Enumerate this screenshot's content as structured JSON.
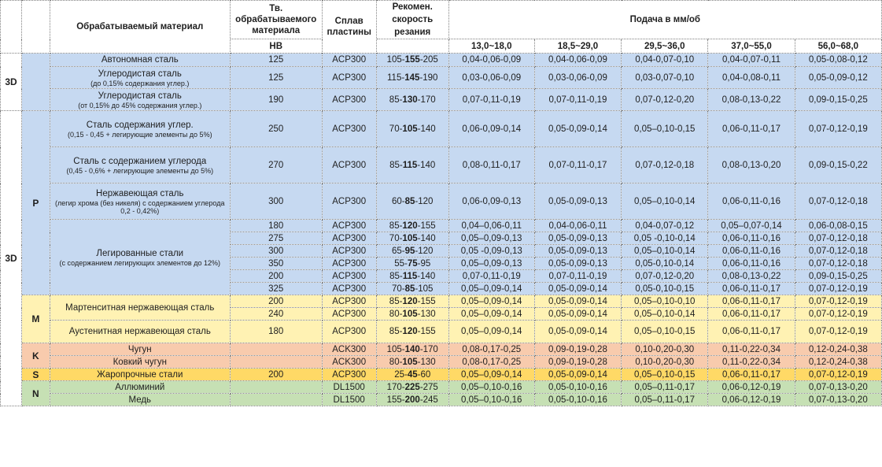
{
  "header": {
    "material": "Обрабатываемый материал",
    "hardness": "Тв. обрабатываемого материала",
    "hardness_unit": "HB",
    "alloy": "Сплав пластины",
    "speed": "Рекомен. скорость резания",
    "feed": "Подача в мм/об",
    "feed_columns": [
      "13,0~18,0",
      "18,5~29,0",
      "29,5~36,0",
      "37,0~55,0",
      "56,0~68,0"
    ]
  },
  "section_label": "3D",
  "rows": [
    {
      "group": "P",
      "mat": "Автономная сталь",
      "note": "",
      "hb": "125",
      "alloy": "ACP300",
      "speed": [
        "105-",
        "155",
        "-205"
      ],
      "feeds": [
        "0,04-0,06-0,09",
        "0,04-0,06-0,09",
        "0,04-0,07-0,10",
        "0,04-0,07-0,11",
        "0,05-0,08-0,12"
      ]
    },
    {
      "group": "P",
      "mat": "Углеродистая сталь",
      "note": "(до 0,15% содержания углер.)",
      "hb": "125",
      "alloy": "ACP300",
      "speed": [
        "115-",
        "145",
        "-190"
      ],
      "feeds": [
        "0,03-0,06-0,09",
        "0,03-0,06-0,09",
        "0,03-0,07-0,10",
        "0,04-0,08-0,11",
        "0,05-0,09-0,12"
      ]
    },
    {
      "group": "P",
      "mat": "Углеродистая сталь",
      "note": "(от 0,15% до 45% содержания углер.)",
      "hb": "190",
      "alloy": "ACP300",
      "speed": [
        "85-",
        "130",
        "-170"
      ],
      "feeds": [
        "0,07-0,11-0,19",
        "0,07-0,11-0,19",
        "0,07-0,12-0,20",
        "0,08-0,13-0,22",
        "0,09-0,15-0,25"
      ]
    },
    {
      "group": "P",
      "mat": "Сталь содержания углер.",
      "note": "(0,15 - 0,45 + легирующие элементы до 5%)",
      "hb": "250",
      "alloy": "ACP300",
      "speed": [
        "70-",
        "105",
        "-140"
      ],
      "feeds": [
        "0,06-0,09-0,14",
        "0,05-0,09-0,14",
        "0,05–0,10-0,15",
        "0,06-0,11-0,17",
        "0,07-0,12-0,19"
      ]
    },
    {
      "group": "P",
      "mat": "Сталь с содержанием углерода",
      "note": "(0,45 - 0,6% + легирующие элементы до 5%)",
      "hb": "270",
      "alloy": "ACP300",
      "speed": [
        "85-",
        "115",
        "-140"
      ],
      "feeds": [
        "0,08-0,11-0,17",
        "0,07-0,11-0,17",
        "0,07-0,12-0,18",
        "0,08-0,13-0,20",
        "0,09-0,15-0,22"
      ]
    },
    {
      "group": "P",
      "mat": "Нержавеющая сталь",
      "note": "(легир хрома (без никеля) с содержанием углерода 0,2 - 0,42%)",
      "hb": "300",
      "alloy": "ACP300",
      "speed": [
        "60-",
        "85",
        "-120"
      ],
      "feeds": [
        "0,06-0,09-0,13",
        "0,05-0,09-0,13",
        "0,05–0,10-0,14",
        "0,06-0,11-0,16",
        "0,07-0,12-0,18"
      ]
    }
  ],
  "alloyed": {
    "mat": "Легированные стали",
    "note": "(с содержанием легирующих элементов до 12%)",
    "rows": [
      {
        "hb": "180",
        "alloy": "ACP300",
        "speed": [
          "85-",
          "120",
          "-155"
        ],
        "feeds": [
          "0,04–0,06-0,11",
          "0,04-0,06-0,11",
          "0,04-0,07-0,12",
          "0,05–0,07-0,14",
          "0,06-0,08-0,15"
        ]
      },
      {
        "hb": "275",
        "alloy": "ACP300",
        "speed": [
          "70-",
          "105",
          "-140"
        ],
        "feeds": [
          "0,05–0,09-0,13",
          "0,05-0,09-0,13",
          "0,05 -0,10-0,14",
          "0,06-0,11-0,16",
          "0,07-0,12-0,18"
        ]
      },
      {
        "hb": "300",
        "alloy": "ACP300",
        "speed": [
          "65-",
          "95",
          "-120"
        ],
        "feeds": [
          "0,05 -0,09-0,13",
          "0,05-0,09-0,13",
          "0,05–0,10-0,14",
          "0,06-0,11-0,16",
          "0,07-0,12-0,18"
        ]
      },
      {
        "hb": "350",
        "alloy": "ACP300",
        "speed": [
          "55-",
          "75",
          "-95"
        ],
        "feeds": [
          "0,05–0,09-0,13",
          "0,05-0,09-0,13",
          "0,05-0,10-0,14",
          "0,06-0,11-0,16",
          "0,07-0,12-0,18"
        ]
      },
      {
        "hb": "200",
        "alloy": "ACP300",
        "speed": [
          "85-",
          "115",
          "-140"
        ],
        "feeds": [
          "0,07-0,11-0,19",
          "0,07-0,11-0,19",
          "0,07-0,12-0,20",
          "0,08-0,13-0,22",
          "0,09-0,15-0,25"
        ]
      },
      {
        "hb": "325",
        "alloy": "ACP300",
        "speed": [
          "70-",
          "85",
          "-105"
        ],
        "feeds": [
          "0,05–0,09-0,14",
          "0,05-0,09-0,14",
          "0,05-0,10-0,15",
          "0,06-0,11-0,17",
          "0,07-0,12-0,19"
        ]
      }
    ]
  },
  "martensitic": {
    "group": "M",
    "mat": "Мартенситная нержавеющая сталь",
    "rows": [
      {
        "hb": "200",
        "alloy": "ACP300",
        "speed": [
          "85-",
          "120",
          "-155"
        ],
        "feeds": [
          "0,05–0,09-0,14",
          "0,05-0,09-0,14",
          "0,05–0,10-0,10",
          "0,06-0,11-0,17",
          "0,07-0,12-0,19"
        ]
      },
      {
        "hb": "240",
        "alloy": "ACP300",
        "speed": [
          "80-",
          "105",
          "-130"
        ],
        "feeds": [
          "0,05–0,09-0,14",
          "0,05-0,09-0,14",
          "0,05–0,10-0,14",
          "0,06-0,11-0,17",
          "0,07-0,12-0,19"
        ]
      }
    ]
  },
  "austenitic": {
    "mat": "Аустенитная нержавеющая сталь",
    "hb": "180",
    "alloy": "ACP300",
    "speed": [
      "85-",
      "120",
      "-155"
    ],
    "feeds": [
      "0,05–0,09-0,14",
      "0,05-0,09-0,14",
      "0,05–0,10-0,15",
      "0,06-0,11-0,17",
      "0,07-0,12-0,19"
    ]
  },
  "cast": [
    {
      "group": "K",
      "mat": "Чугун",
      "hb": "",
      "alloy": "ACK300",
      "speed": [
        "105-",
        "140",
        "-170"
      ],
      "feeds": [
        "0,08-0,17-0,25",
        "0,09-0,19-0,28",
        "0,10-0,20-0,30",
        "0,11-0,22-0,34",
        "0,12-0,24-0,38"
      ]
    },
    {
      "group": "K",
      "mat": "Ковкий чугун",
      "hb": "",
      "alloy": "ACK300",
      "speed": [
        "80-",
        "105",
        "-130"
      ],
      "feeds": [
        "0,08-0,17-0,25",
        "0,09-0,19-0,28",
        "0,10-0,20-0,30",
        "0,11-0,22-0,34",
        "0,12-0,24-0,38"
      ]
    }
  ],
  "heat": {
    "group": "S",
    "mat": "Жаропрочные стали",
    "hb": "200",
    "alloy": "ACP300",
    "speed": [
      "25-",
      "45",
      "-60"
    ],
    "feeds": [
      "0,05–0,09-0,14",
      "0,05-0,09-0,14",
      "0,05–0,10-0,15",
      "0,06-0,11-0,17",
      "0,07-0,12-0,19"
    ]
  },
  "nonferrous": [
    {
      "group": "N",
      "mat": "Аллюминий",
      "hb": "",
      "alloy": "DL1500",
      "speed": [
        "170-",
        "225",
        "-275"
      ],
      "feeds": [
        "0,05–0,10-0,16",
        "0,05-0,10-0,16",
        "0,05–0,11-0,17",
        "0,06-0,12-0,19",
        "0,07-0,13-0,20"
      ]
    },
    {
      "group": "N",
      "mat": "Медь",
      "hb": "",
      "alloy": "DL1500",
      "speed": [
        "155-",
        "200",
        "-245"
      ],
      "feeds": [
        "0,05–0,10-0,16",
        "0,05-0,10-0,16",
        "0,05–0,11-0,17",
        "0,06-0,12-0,19",
        "0,07-0,13-0,20"
      ]
    }
  ]
}
